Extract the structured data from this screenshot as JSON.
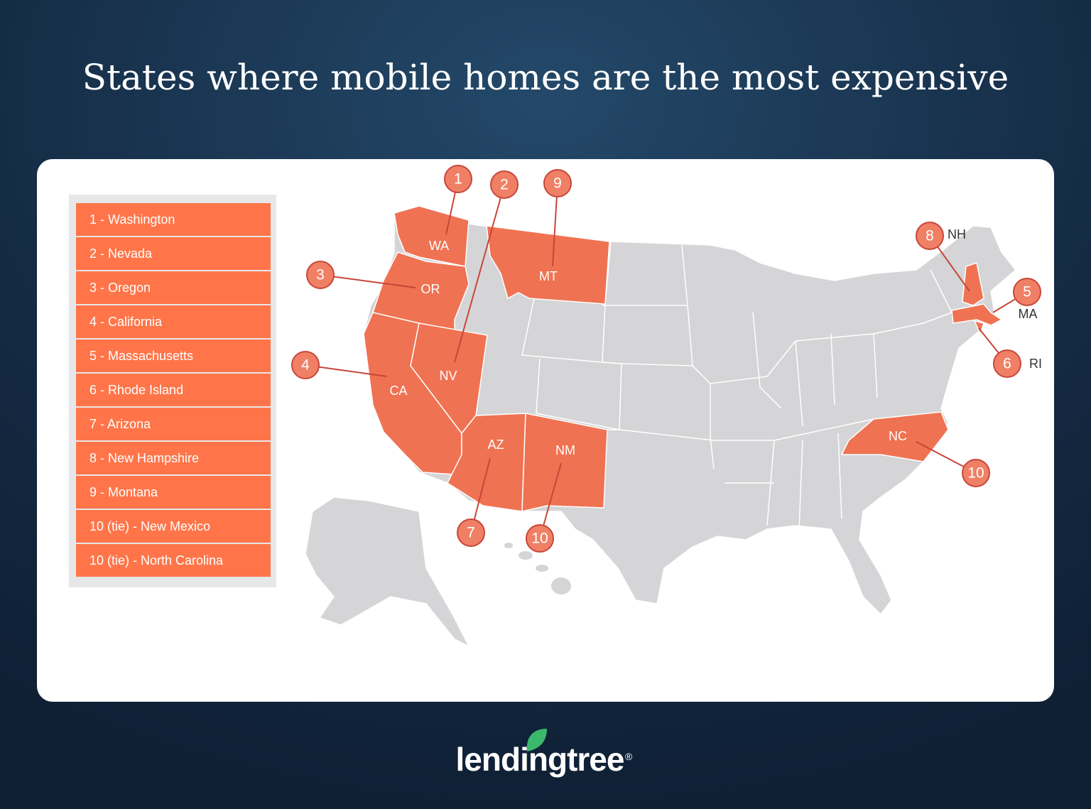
{
  "title": "States where mobile homes are the most expensive",
  "legend": [
    "1 - Washington",
    "2 - Nevada",
    "3 - Oregon",
    "4 - California",
    "5 - Massachusetts",
    "6 - Rhode Island",
    "7 - Arizona",
    "8 - New Hampshire",
    "9 - Montana",
    "10 (tie) - New Mexico",
    "10 (tie) - North Carolina"
  ],
  "states": [
    {
      "abbr": "WA",
      "rank": "1"
    },
    {
      "abbr": "NV",
      "rank": "2"
    },
    {
      "abbr": "MT",
      "rank": "9"
    },
    {
      "abbr": "OR",
      "rank": "3"
    },
    {
      "abbr": "CA",
      "rank": "4"
    },
    {
      "abbr": "AZ",
      "rank": "7"
    },
    {
      "abbr": "NM",
      "rank": "10"
    },
    {
      "abbr": "NH",
      "rank": "8"
    },
    {
      "abbr": "MA",
      "rank": "5"
    },
    {
      "abbr": "RI",
      "rank": "6"
    },
    {
      "abbr": "NC",
      "rank": "10"
    }
  ],
  "logo": {
    "text": "lendingtree",
    "mark": "®"
  }
}
